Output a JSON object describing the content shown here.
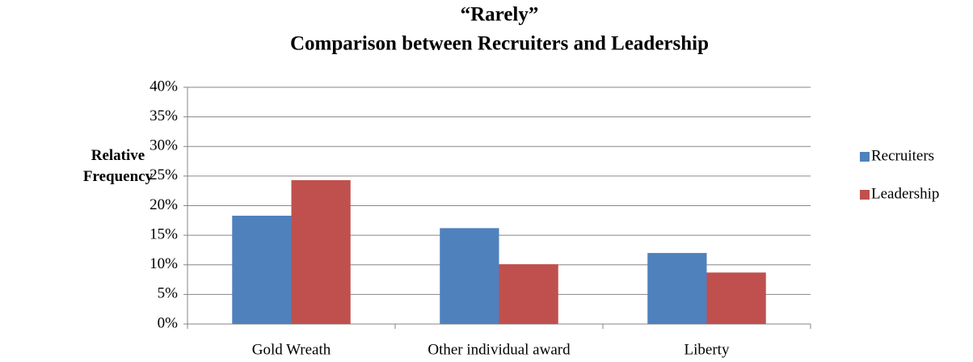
{
  "chart_data": {
    "type": "bar",
    "title": "“Rarely”",
    "subtitle": "Comparison between Recruiters and Leadership",
    "y_label": "Relative Frequency",
    "categories": [
      "Gold Wreath",
      "Other individual award",
      "Liberty"
    ],
    "series": [
      {
        "name": "Recruiters",
        "color": "#4f81bd",
        "values": [
          18.3,
          16.2,
          12.0
        ]
      },
      {
        "name": "Leadership",
        "color": "#c0504d",
        "values": [
          24.3,
          10.1,
          8.7
        ]
      }
    ],
    "ylim": [
      0,
      40
    ],
    "yticks": [
      {
        "value": 0,
        "label": "0%"
      },
      {
        "value": 5,
        "label": "5%"
      },
      {
        "value": 10,
        "label": "10%"
      },
      {
        "value": 15,
        "label": "15%"
      },
      {
        "value": 20,
        "label": "20%"
      },
      {
        "value": 25,
        "label": "25%"
      },
      {
        "value": 30,
        "label": "30%"
      },
      {
        "value": 35,
        "label": "35%"
      },
      {
        "value": 40,
        "label": "40%"
      }
    ],
    "grid": true,
    "legend": "right"
  }
}
